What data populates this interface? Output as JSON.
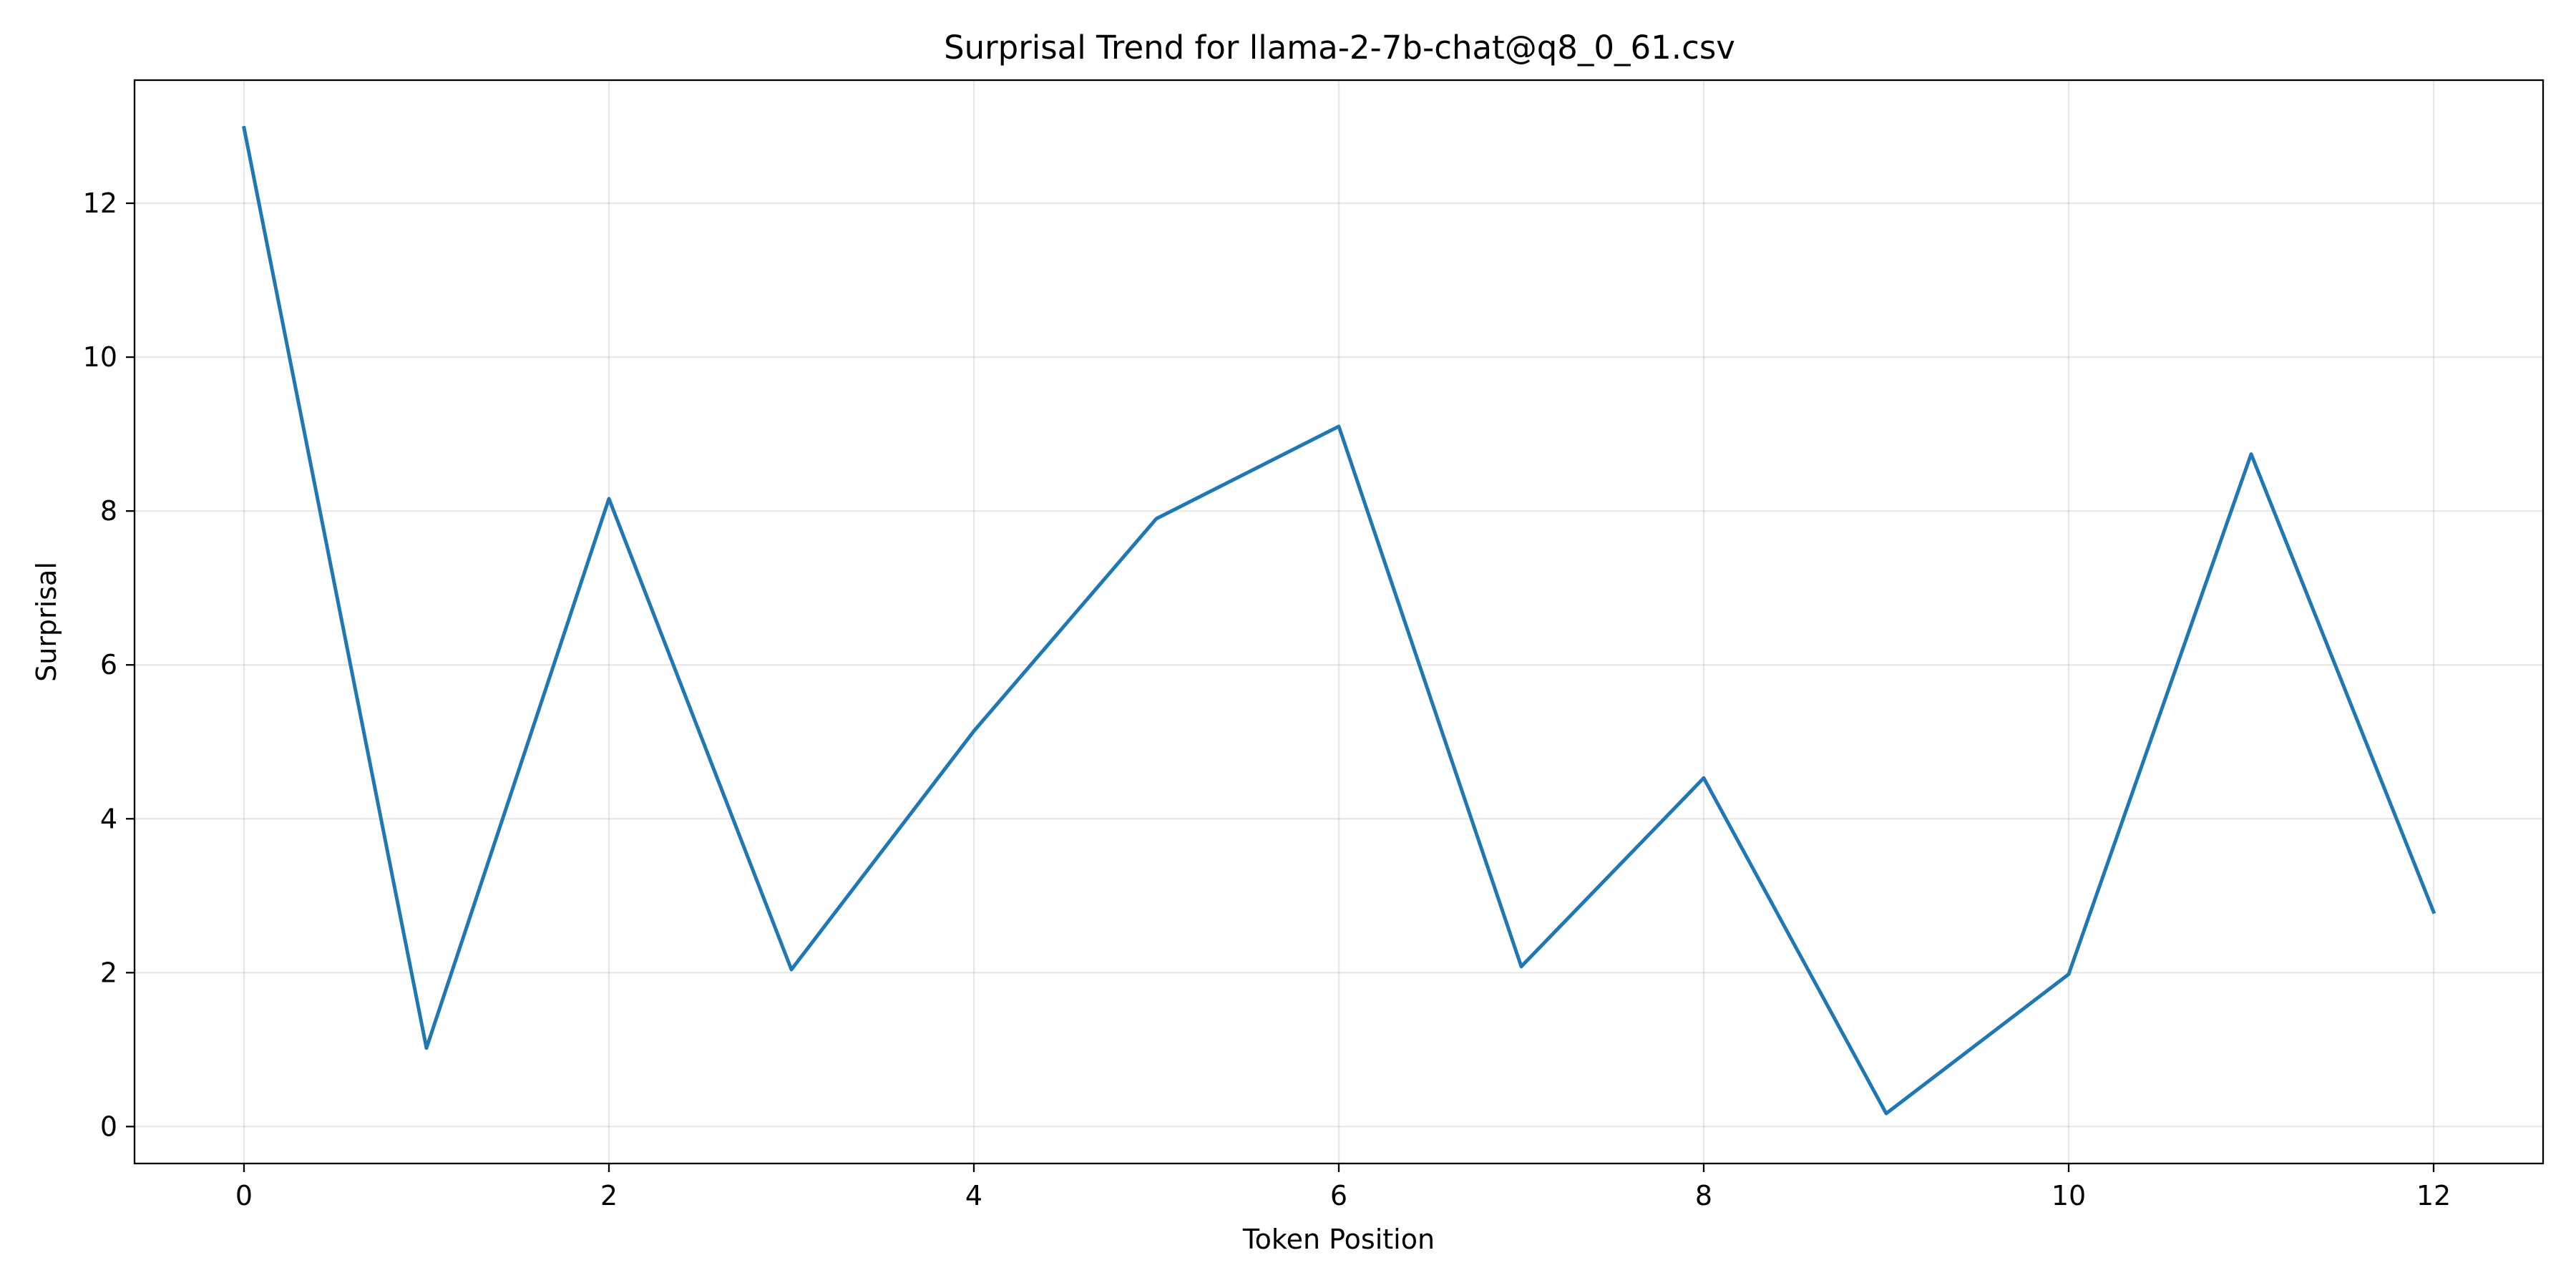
{
  "chart_data": {
    "type": "line",
    "title": "Surprisal Trend for llama-2-7b-chat@q8_0_61.csv",
    "xlabel": "Token Position",
    "ylabel": "Surprisal",
    "x": [
      0,
      1,
      2,
      3,
      4,
      5,
      6,
      7,
      8,
      9,
      10,
      11,
      12
    ],
    "series": [
      {
        "values": [
          12.98,
          1.02,
          8.16,
          2.04,
          5.14,
          7.9,
          9.1,
          2.08,
          4.53,
          0.17,
          1.98,
          8.74,
          2.79
        ]
      }
    ],
    "xlim": [
      -0.6,
      12.6
    ],
    "ylim": [
      -0.48,
      13.6
    ],
    "xticks": [
      0,
      2,
      4,
      6,
      8,
      10,
      12
    ],
    "yticks": [
      0,
      2,
      4,
      6,
      8,
      10,
      12
    ],
    "grid": true,
    "line_color": "#1f77b4"
  }
}
